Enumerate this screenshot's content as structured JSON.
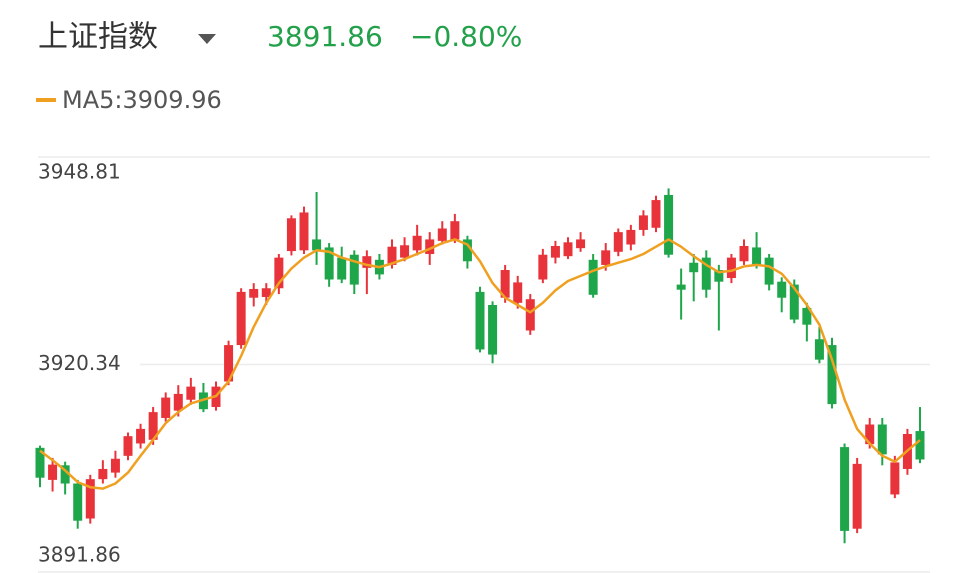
{
  "header": {
    "title": "上证指数",
    "price": "3891.86",
    "change": "−0.80%"
  },
  "chart_data": {
    "type": "candlestick",
    "up_color": "#e8333a",
    "down_color": "#1fa64b",
    "open": [
      3908.9,
      3904.5,
      3906.5,
      3904.0,
      3899.2,
      3904.6,
      3905.5,
      3907.8,
      3909.5,
      3910.0,
      3913.0,
      3914.0,
      3915.5,
      3916.5,
      3914.5,
      3918.0,
      3923.0,
      3929.5,
      3929.6,
      3930.8,
      3935.9,
      3936.0,
      3937.5,
      3936.4,
      3935.0,
      3935.4,
      3933.6,
      3934.7,
      3934.0,
      3935.0,
      3936.0,
      3935.5,
      3937.3,
      3937.5,
      3937.5,
      3930.3,
      3928.5,
      3929.5,
      3928.8,
      3925.0,
      3932.0,
      3935.0,
      3935.2,
      3936.3,
      3934.7,
      3934.0,
      3935.8,
      3936.8,
      3938.8,
      3939.1,
      3943.6,
      3931.3,
      3934.3,
      3935.0,
      3933.3,
      3932.2,
      3934.5,
      3936.4,
      3935.0,
      3931.7,
      3931.3,
      3928.1,
      3923.8,
      3923.0,
      3909.0,
      3897.8,
      3909.4,
      3912.1,
      3902.5,
      3906.0,
      3911.2
    ],
    "high": [
      3909.2,
      3907.5,
      3907.0,
      3904.5,
      3905.2,
      3907.2,
      3908.5,
      3911.0,
      3912.2,
      3914.5,
      3916.5,
      3917.5,
      3918.5,
      3917.8,
      3918.0,
      3923.6,
      3930.8,
      3931.5,
      3931.5,
      3935.5,
      3940.8,
      3942.0,
      3944.0,
      3937.0,
      3936.5,
      3936.0,
      3936.0,
      3935.5,
      3937.5,
      3937.8,
      3939.5,
      3938.5,
      3940.0,
      3941.0,
      3938.0,
      3931.0,
      3929.0,
      3934.0,
      3932.5,
      3930.0,
      3936.2,
      3937.3,
      3937.8,
      3938.5,
      3935.5,
      3937.0,
      3939.0,
      3939.5,
      3941.5,
      3943.5,
      3944.5,
      3933.5,
      3935.5,
      3936.0,
      3934.0,
      3935.5,
      3937.5,
      3938.5,
      3935.5,
      3932.3,
      3932.0,
      3928.8,
      3925.5,
      3924.0,
      3909.5,
      3907.5,
      3913.0,
      3913.0,
      3907.8,
      3911.5,
      3914.5
    ],
    "low": [
      3903.5,
      3902.9,
      3902.5,
      3897.8,
      3898.5,
      3904.0,
      3904.8,
      3907.2,
      3908.8,
      3909.3,
      3912.5,
      3913.2,
      3914.8,
      3913.8,
      3914.0,
      3917.5,
      3922.5,
      3928.3,
      3928.5,
      3930.0,
      3935.3,
      3935.5,
      3934.0,
      3931.0,
      3931.5,
      3930.0,
      3930.0,
      3932.0,
      3933.5,
      3934.5,
      3935.3,
      3934.0,
      3936.8,
      3937.0,
      3933.5,
      3922.0,
      3920.5,
      3928.8,
      3928.0,
      3924.4,
      3931.5,
      3934.2,
      3934.8,
      3935.8,
      3929.5,
      3933.2,
      3935.2,
      3936.0,
      3938.0,
      3938.5,
      3935.0,
      3926.5,
      3929.0,
      3929.5,
      3925.0,
      3931.5,
      3934.0,
      3933.5,
      3930.5,
      3927.5,
      3926.0,
      3923.5,
      3920.5,
      3914.3,
      3895.8,
      3897.2,
      3908.8,
      3906.5,
      3902.0,
      3905.2,
      3906.8
    ],
    "close": [
      3904.8,
      3906.6,
      3904.0,
      3898.9,
      3904.6,
      3906.0,
      3907.4,
      3910.5,
      3911.5,
      3913.8,
      3915.8,
      3916.3,
      3917.3,
      3914.2,
      3917.3,
      3923.0,
      3930.3,
      3930.7,
      3930.8,
      3935.0,
      3940.4,
      3941.2,
      3936.0,
      3932.0,
      3932.0,
      3931.3,
      3935.2,
      3932.7,
      3936.5,
      3936.7,
      3938.0,
      3937.5,
      3939.0,
      3940.0,
      3934.5,
      3922.4,
      3921.7,
      3933.3,
      3931.6,
      3929.3,
      3935.4,
      3936.6,
      3937.1,
      3937.5,
      3929.9,
      3936.0,
      3938.5,
      3938.8,
      3940.8,
      3942.9,
      3935.4,
      3930.6,
      3933.0,
      3930.6,
      3931.7,
      3935.0,
      3936.6,
      3934.0,
      3931.3,
      3929.5,
      3926.5,
      3925.8,
      3921.0,
      3914.9,
      3897.5,
      3906.7,
      3912.1,
      3908.0,
      3906.9,
      3910.8,
      3907.3
    ],
    "series": [
      {
        "name": "MA5:",
        "color": "#f0a020",
        "values": [
          3908.5,
          3907.2,
          3905.8,
          3904.2,
          3903.5,
          3903.3,
          3904.0,
          3905.5,
          3907.8,
          3910.0,
          3912.3,
          3913.8,
          3915.0,
          3915.5,
          3916.0,
          3918.0,
          3921.5,
          3925.5,
          3928.8,
          3931.5,
          3933.5,
          3935.0,
          3936.0,
          3935.8,
          3935.0,
          3934.5,
          3934.0,
          3933.7,
          3934.2,
          3934.8,
          3935.5,
          3936.2,
          3937.0,
          3937.5,
          3936.8,
          3934.5,
          3931.5,
          3929.5,
          3928.5,
          3927.5,
          3928.8,
          3930.5,
          3931.8,
          3932.5,
          3933.2,
          3933.8,
          3934.3,
          3934.8,
          3935.5,
          3936.5,
          3937.5,
          3936.5,
          3935.2,
          3934.0,
          3933.0,
          3933.2,
          3933.8,
          3934.0,
          3933.8,
          3932.8,
          3930.8,
          3928.5,
          3925.8,
          3921.0,
          3915.5,
          3911.5,
          3909.5,
          3907.8,
          3907.0,
          3908.5,
          3909.96
        ]
      }
    ],
    "ylim": [
      3891.86,
      3948.81
    ],
    "yticks": [
      3891.86,
      3920.34,
      3948.81
    ],
    "grid": true
  }
}
